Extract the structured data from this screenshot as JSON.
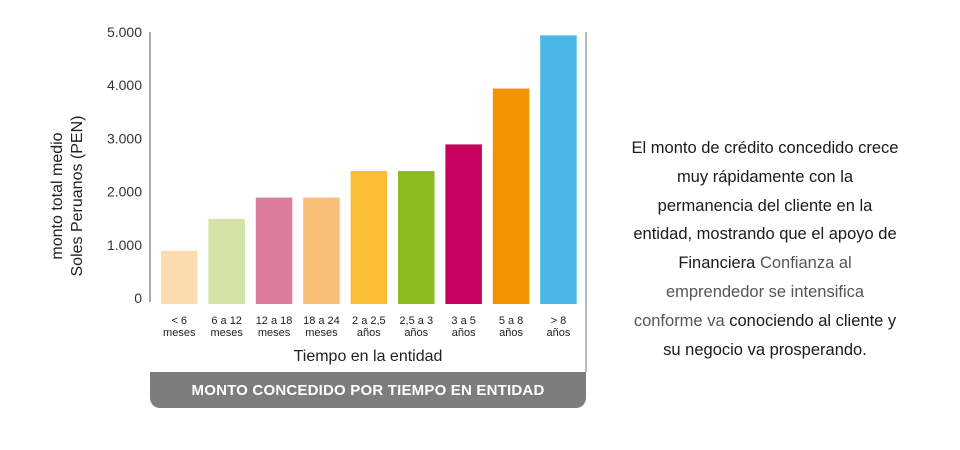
{
  "chart_data": {
    "type": "bar",
    "title": "MONTO CONCEDIDO POR TIEMPO EN ENTIDAD",
    "xlabel": "Tiempo en la entidad",
    "ylabel_line1": "monto total medio",
    "ylabel_line2": "Soles Peruanos (PEN)",
    "ylim": [
      0,
      5000
    ],
    "yticks": [
      {
        "value": 0,
        "label": "0"
      },
      {
        "value": 1000,
        "label": "1.000"
      },
      {
        "value": 2000,
        "label": "2.000"
      },
      {
        "value": 3000,
        "label": "3.000"
      },
      {
        "value": 4000,
        "label": "4.000"
      },
      {
        "value": 5000,
        "label": "5.000"
      }
    ],
    "grid": false,
    "categories": [
      {
        "line1": "< 6",
        "line2": "meses"
      },
      {
        "line1": "6 a 12",
        "line2": "meses"
      },
      {
        "line1": "12 a 18",
        "line2": "meses"
      },
      {
        "line1": "18 a 24",
        "line2": "meses"
      },
      {
        "line1": "2 a 2,5",
        "line2": "años"
      },
      {
        "line1": "2,5 a 3",
        "line2": "años"
      },
      {
        "line1": "3 a 5",
        "line2": "años"
      },
      {
        "line1": "5 a 8",
        "line2": "años"
      },
      {
        "line1": "> 8",
        "line2": "años"
      }
    ],
    "values": [
      1000,
      1600,
      2000,
      2000,
      2500,
      2500,
      3000,
      4050,
      5050
    ],
    "colors": [
      "#fddcb0",
      "#d3e3a7",
      "#dc7c9b",
      "#f9bf78",
      "#fbbd32",
      "#8cbc1e",
      "#c8005f",
      "#f39300",
      "#4ab8e6"
    ]
  },
  "side_text": {
    "main": "El monto de crédito concedido crece muy rápidamente con la permanencia del cliente en la entidad, mostrando que el apoyo de Financiera",
    "soft": "Confianza al emprendedor se intensifica conforme va",
    "end": "conociendo al cliente y su negocio va prosperando."
  }
}
